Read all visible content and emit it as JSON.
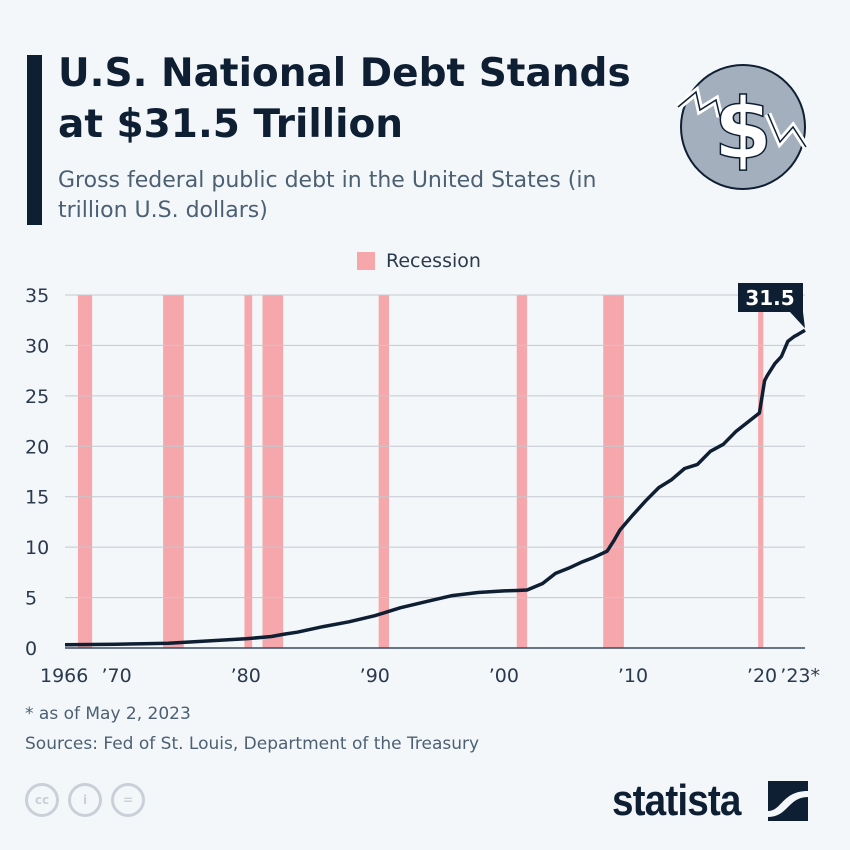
{
  "header": {
    "title": "U.S. National Debt Stands at $31.5 Trillion",
    "subtitle": "Gross federal public debt in the United States (in trillion U.S. dollars)",
    "icon": "dollar-coin-icon"
  },
  "legend": {
    "recession_label": "Recession",
    "recession_color": "#f5a7ab"
  },
  "chart_data": {
    "type": "line",
    "title": "",
    "xlabel": "",
    "ylabel": "",
    "xlim": [
      1966,
      2023.33
    ],
    "ylim": [
      0,
      35
    ],
    "grid": true,
    "legend_position": "top-center",
    "line_color": "#0f1f33",
    "y_ticks": [
      "0",
      "5",
      "10",
      "15",
      "20",
      "25",
      "30",
      "35"
    ],
    "x_ticks": [
      {
        "year": 1966,
        "label": "1966"
      },
      {
        "year": 1970,
        "label": "’70"
      },
      {
        "year": 1980,
        "label": "’80"
      },
      {
        "year": 1990,
        "label": "’90"
      },
      {
        "year": 2000,
        "label": "’00"
      },
      {
        "year": 2010,
        "label": "’10"
      },
      {
        "year": 2020,
        "label": "’20"
      },
      {
        "year": 2023.33,
        "label": "’23*"
      }
    ],
    "recessions": [
      [
        1967.0,
        1968.1
      ],
      [
        1973.6,
        1975.2
      ],
      [
        1979.9,
        1980.5
      ],
      [
        1981.3,
        1982.9
      ],
      [
        1990.3,
        1991.1
      ],
      [
        2001.0,
        2001.8
      ],
      [
        2007.7,
        2009.3
      ],
      [
        2019.7,
        2020.1
      ]
    ],
    "series": [
      {
        "x": [
          1966,
          1968,
          1970,
          1972,
          1974,
          1976,
          1978,
          1980,
          1982,
          1983,
          1984,
          1986,
          1988,
          1990,
          1991,
          1992,
          1994,
          1996,
          1998,
          2000,
          2001,
          2001.8,
          2003,
          2004,
          2005,
          2006,
          2007,
          2008,
          2008.5,
          2009,
          2010,
          2011,
          2012,
          2013,
          2014,
          2015,
          2016,
          2017,
          2018,
          2019,
          2019.8,
          2020.2,
          2020.4,
          2021,
          2021.5,
          2022,
          2022.5,
          2022.8,
          2023.33
        ],
        "y": [
          0.32,
          0.35,
          0.38,
          0.43,
          0.48,
          0.62,
          0.77,
          0.91,
          1.14,
          1.38,
          1.57,
          2.12,
          2.6,
          3.2,
          3.6,
          4.0,
          4.6,
          5.2,
          5.5,
          5.66,
          5.7,
          5.75,
          6.4,
          7.4,
          7.9,
          8.5,
          9.0,
          9.6,
          10.6,
          11.7,
          13.2,
          14.6,
          15.9,
          16.7,
          17.8,
          18.2,
          19.5,
          20.2,
          21.5,
          22.5,
          23.3,
          26.5,
          27.0,
          28.2,
          28.9,
          30.4,
          30.9,
          31.1,
          31.5
        ]
      }
    ],
    "annotation": "31.5"
  },
  "footer": {
    "footnote": "* as of May 2, 2023",
    "source": "Sources: Fed of St. Louis, Department of the Treasury",
    "license_icons": [
      "cc-icon",
      "attribution-icon",
      "no-derivatives-icon"
    ],
    "brand": "statista"
  }
}
